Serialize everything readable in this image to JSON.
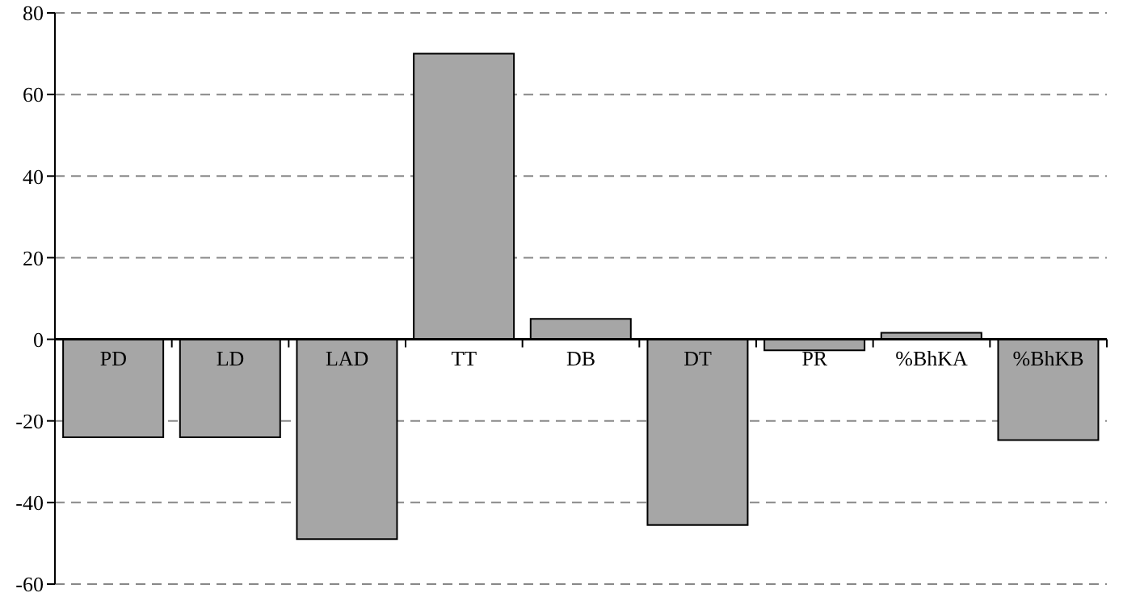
{
  "chart_data": {
    "type": "bar",
    "categories": [
      "PD",
      "LD",
      "LAD",
      "TT",
      "DB",
      "DT",
      "PR",
      "%BhKA",
      "%BhKB"
    ],
    "values": [
      -24,
      -24,
      -49,
      70,
      5,
      -45.5,
      -2.7,
      1.6,
      -24.7
    ],
    "color": "#a6a6a6",
    "ylim": [
      -60,
      80
    ],
    "yticks": [
      -60,
      -40,
      -20,
      0,
      20,
      40,
      60,
      80
    ],
    "grid": "y"
  }
}
